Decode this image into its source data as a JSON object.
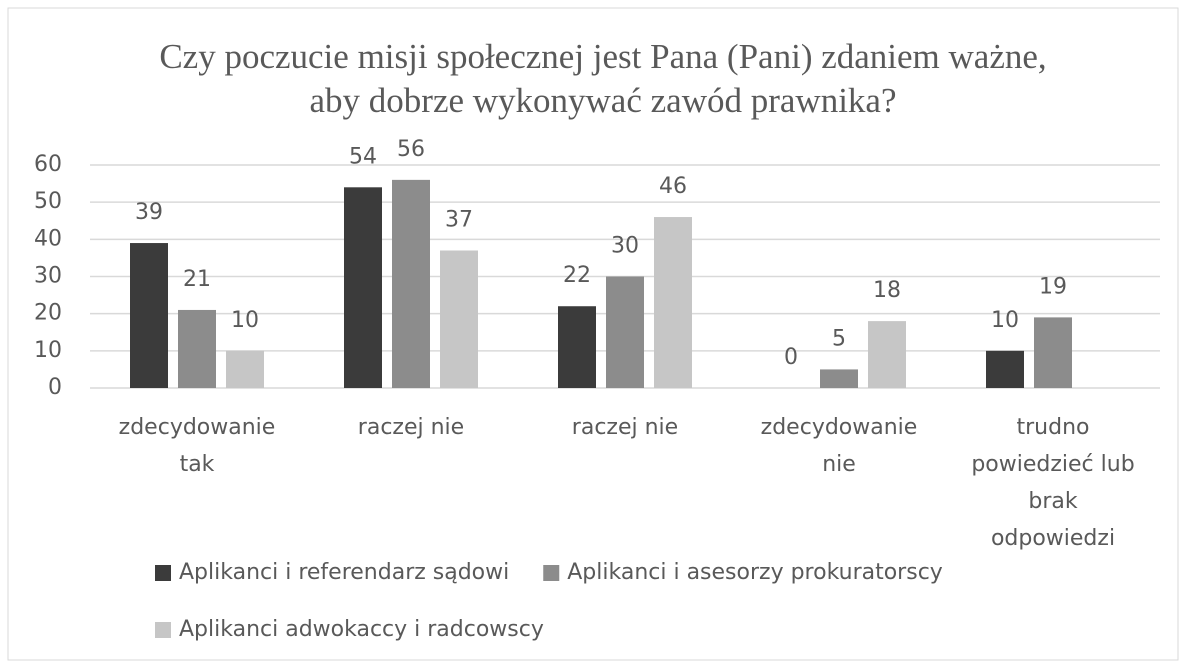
{
  "chart_data": {
    "type": "bar",
    "title": "Czy poczucie misji społecznej jest Pana (Pani) zdaniem ważne, aby dobrze wykonywać zawód prawnika?",
    "categories": [
      "zdecydowanie tak",
      "raczej nie",
      "raczej nie",
      "zdecydowanie nie",
      "trudno powiedzieć lub brak odpowiedzi"
    ],
    "series": [
      {
        "name": "Aplikanci i referendarz sądowi",
        "color": "#3b3b3b",
        "values": [
          39,
          54,
          22,
          0,
          10
        ]
      },
      {
        "name": "Aplikanci i asesorzy prokuratorscy",
        "color": "#8c8c8c",
        "values": [
          21,
          56,
          30,
          5,
          19
        ]
      },
      {
        "name": "Aplikanci adwokaccy i radcowscy",
        "color": "#c6c6c6",
        "values": [
          10,
          37,
          46,
          18,
          null
        ]
      }
    ],
    "ylim": [
      0,
      60
    ],
    "yticks": [
      0,
      10,
      20,
      30,
      40,
      50,
      60
    ],
    "grid": true,
    "legend": "bottom"
  }
}
